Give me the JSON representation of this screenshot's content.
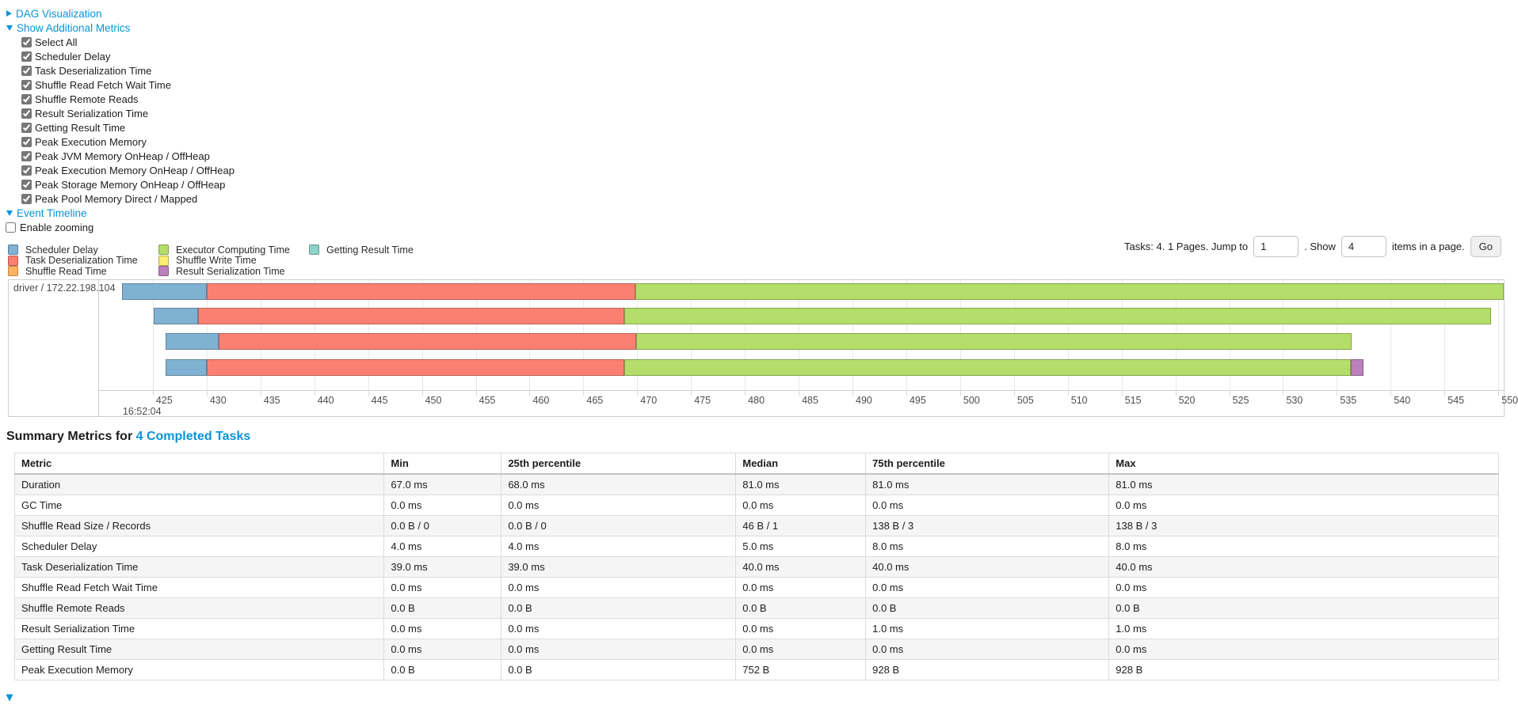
{
  "sections": {
    "dag_label": "DAG Visualization",
    "metrics_label": "Show Additional Metrics",
    "timeline_label": "Event Timeline"
  },
  "enable_zooming_label": "Enable zooming",
  "metric_checkboxes": [
    "Select All",
    "Scheduler Delay",
    "Task Deserialization Time",
    "Shuffle Read Fetch Wait Time",
    "Shuffle Remote Reads",
    "Result Serialization Time",
    "Getting Result Time",
    "Peak Execution Memory",
    "Peak JVM Memory OnHeap / OffHeap",
    "Peak Execution Memory OnHeap / OffHeap",
    "Peak Storage Memory OnHeap / OffHeap",
    "Peak Pool Memory Direct / Mapped"
  ],
  "legend_columns": [
    [
      {
        "label": "Scheduler Delay",
        "color": "#80B1D3"
      },
      {
        "label": "Task Deserialization Time",
        "color": "#FB8072"
      },
      {
        "label": "Shuffle Read Time",
        "color": "#FDB462"
      }
    ],
    [
      {
        "label": "Executor Computing Time",
        "color": "#B3DE69"
      },
      {
        "label": "Shuffle Write Time",
        "color": "#FFED6F"
      },
      {
        "label": "Result Serialization Time",
        "color": "#BC80BD"
      }
    ],
    [
      {
        "label": "Getting Result Time",
        "color": "#8DD3C7"
      }
    ]
  ],
  "pagination": {
    "tasks_text": "Tasks: 4. 1 Pages. Jump to",
    "jump_value": "1",
    "show_text": ". Show",
    "show_value": "4",
    "items_text": "items in a page.",
    "go_label": "Go"
  },
  "chart_data": {
    "type": "timeline",
    "group_label": "driver / 172.22.198.104",
    "axis": {
      "min": 420,
      "max": 550.5,
      "tick_step": 5,
      "first_tick": 425,
      "last_tick": 550,
      "major_label": "16:52:04"
    },
    "colors": {
      "scheduler_delay": "#80B1D3",
      "task_deserialization": "#FB8072",
      "shuffle_read": "#FDB462",
      "executor_computing": "#B3DE69",
      "shuffle_write": "#FFED6F",
      "result_serialization": "#BC80BD",
      "getting_result": "#8DD3C7"
    },
    "rows": [
      {
        "segments": [
          {
            "key": "scheduler_delay",
            "start": 422.1,
            "end": 430.0
          },
          {
            "key": "task_deserialization",
            "start": 430.0,
            "end": 469.8
          },
          {
            "key": "executor_computing",
            "start": 469.8,
            "end": 550.5
          }
        ]
      },
      {
        "segments": [
          {
            "key": "scheduler_delay",
            "start": 425.1,
            "end": 429.2
          },
          {
            "key": "task_deserialization",
            "start": 429.2,
            "end": 468.8
          },
          {
            "key": "executor_computing",
            "start": 468.8,
            "end": 549.3
          }
        ]
      },
      {
        "segments": [
          {
            "key": "scheduler_delay",
            "start": 426.2,
            "end": 431.1
          },
          {
            "key": "task_deserialization",
            "start": 431.1,
            "end": 469.9
          },
          {
            "key": "executor_computing",
            "start": 469.9,
            "end": 536.4
          }
        ]
      },
      {
        "segments": [
          {
            "key": "scheduler_delay",
            "start": 426.2,
            "end": 430.0
          },
          {
            "key": "task_deserialization",
            "start": 430.0,
            "end": 468.8
          },
          {
            "key": "executor_computing",
            "start": 468.8,
            "end": 536.3
          },
          {
            "key": "result_serialization",
            "start": 536.3,
            "end": 537.5
          }
        ]
      }
    ]
  },
  "summary": {
    "title_prefix": "Summary Metrics for",
    "title_link": "4 Completed Tasks"
  },
  "table": {
    "headers": [
      "Metric",
      "Min",
      "25th percentile",
      "Median",
      "75th percentile",
      "Max"
    ],
    "rows": [
      [
        "Duration",
        "67.0 ms",
        "68.0 ms",
        "81.0 ms",
        "81.0 ms",
        "81.0 ms"
      ],
      [
        "GC Time",
        "0.0 ms",
        "0.0 ms",
        "0.0 ms",
        "0.0 ms",
        "0.0 ms"
      ],
      [
        "Shuffle Read Size / Records",
        "0.0 B / 0",
        "0.0 B / 0",
        "46 B / 1",
        "138 B / 3",
        "138 B / 3"
      ],
      [
        "Scheduler Delay",
        "4.0 ms",
        "4.0 ms",
        "5.0 ms",
        "8.0 ms",
        "8.0 ms"
      ],
      [
        "Task Deserialization Time",
        "39.0 ms",
        "39.0 ms",
        "40.0 ms",
        "40.0 ms",
        "40.0 ms"
      ],
      [
        "Shuffle Read Fetch Wait Time",
        "0.0 ms",
        "0.0 ms",
        "0.0 ms",
        "0.0 ms",
        "0.0 ms"
      ],
      [
        "Shuffle Remote Reads",
        "0.0 B",
        "0.0 B",
        "0.0 B",
        "0.0 B",
        "0.0 B"
      ],
      [
        "Result Serialization Time",
        "0.0 ms",
        "0.0 ms",
        "0.0 ms",
        "1.0 ms",
        "1.0 ms"
      ],
      [
        "Getting Result Time",
        "0.0 ms",
        "0.0 ms",
        "0.0 ms",
        "0.0 ms",
        "0.0 ms"
      ],
      [
        "Peak Execution Memory",
        "0.0 B",
        "0.0 B",
        "752 B",
        "928 B",
        "928 B"
      ]
    ]
  }
}
